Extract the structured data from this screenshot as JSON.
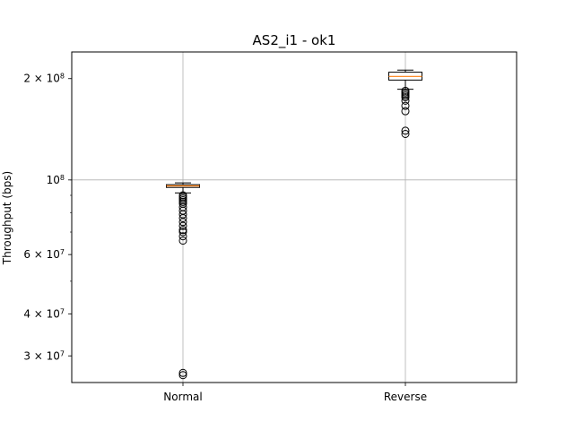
{
  "chart_data": {
    "type": "box",
    "title": "AS2_i1 - ok1",
    "xlabel": "",
    "ylabel": "Throughput (bps)",
    "yscale": "log",
    "ylim": [
      25000000,
      240000000
    ],
    "grid": true,
    "categories": [
      "Normal",
      "Reverse"
    ],
    "y_ticks": [
      {
        "value": 30000000,
        "mant": "3",
        "exp": "7"
      },
      {
        "value": 40000000,
        "mant": "4",
        "exp": "7"
      },
      {
        "value": 60000000,
        "mant": "6",
        "exp": "7"
      },
      {
        "value": 100000000,
        "mant": "",
        "exp": "8"
      },
      {
        "value": 200000000,
        "mant": "2",
        "exp": "8"
      }
    ],
    "boxes": [
      {
        "name": "Normal",
        "whisker_low": 91500000,
        "q1": 95000000,
        "median": 96000000,
        "q3": 96800000,
        "whisker_high": 98000000,
        "outliers": [
          90000000,
          89000000,
          88000000,
          87000000,
          86000000,
          85000000,
          83000000,
          81000000,
          79000000,
          77000000,
          75000000,
          73000000,
          71000000,
          70000000,
          68000000,
          66000000,
          26700000,
          26300000
        ]
      },
      {
        "name": "Reverse",
        "whisker_low": 186000000,
        "q1": 198000000,
        "median": 203000000,
        "q3": 209000000,
        "whisker_high": 212000000,
        "outliers": [
          184000000,
          182000000,
          180000000,
          178000000,
          176000000,
          172000000,
          166000000,
          160000000,
          140000000,
          137000000
        ]
      }
    ],
    "colors": {
      "box_edge": "#000000",
      "median": "#ff7f0e",
      "grid": "#b0b0b0",
      "frame": "#000000"
    }
  }
}
